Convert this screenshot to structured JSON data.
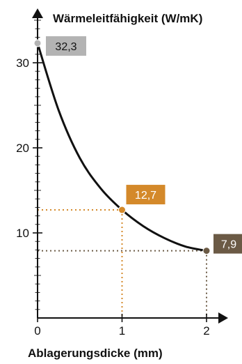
{
  "chart_data": {
    "type": "line",
    "title": "",
    "ylabel": "Wärmeleitfähigkeit (W/mK)",
    "xlabel": "Ablagerungsdicke (mm)",
    "xlim": [
      0,
      2
    ],
    "ylim": [
      0,
      35
    ],
    "x_ticks": [
      0,
      1,
      2
    ],
    "x_tick_labels": [
      "0",
      "1",
      "2"
    ],
    "y_ticks": [
      10,
      20,
      30
    ],
    "y_tick_labels": [
      "10",
      "20",
      "30"
    ],
    "grid": false,
    "series": [
      {
        "points": [
          {
            "x": 0,
            "y": 32.3
          },
          {
            "x": 0.25,
            "y": 24.4
          },
          {
            "x": 0.5,
            "y": 18.8
          },
          {
            "x": 0.75,
            "y": 15.2
          },
          {
            "x": 1,
            "y": 12.7
          },
          {
            "x": 1.25,
            "y": 10.8
          },
          {
            "x": 1.5,
            "y": 9.4
          },
          {
            "x": 1.75,
            "y": 8.4
          },
          {
            "x": 2,
            "y": 7.9
          }
        ]
      }
    ],
    "annotations": [
      {
        "x": 0,
        "y": 32.3,
        "label": "32,3",
        "color": "#b3b3b3",
        "text_color": "#111111",
        "guides": false
      },
      {
        "x": 1,
        "y": 12.7,
        "label": "12,7",
        "color": "#d4892a",
        "text_color": "#ffffff",
        "guides": true,
        "guide_color": "#d4892a"
      },
      {
        "x": 2,
        "y": 7.9,
        "label": "7,9",
        "color": "#6b5a45",
        "text_color": "#ffffff",
        "guides": true,
        "guide_color": "#6b5a45"
      }
    ],
    "line_color": "#111111"
  }
}
